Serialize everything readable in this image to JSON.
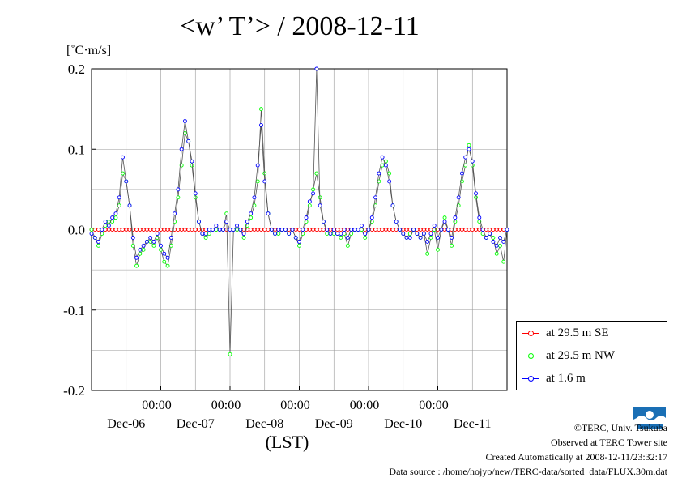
{
  "title": "<w’ T’> / 2008-12-11",
  "unit_label": "[˚C·m/s]",
  "chart_data": {
    "type": "line",
    "xlabel": "(LST)",
    "ylabel": "[˚C·m/s]",
    "ylim": [
      -0.2,
      0.2
    ],
    "yticks": [
      -0.2,
      -0.1,
      0.0,
      0.1,
      0.2
    ],
    "ytick_labels": [
      "-0.2",
      "-0.1",
      "0.0",
      "0.1",
      "0.2"
    ],
    "xlim": [
      0,
      6
    ],
    "xtick_time_labels": [
      "00:00",
      "00:00",
      "00:00",
      "00:00",
      "00:00"
    ],
    "xtick_date_labels": [
      "Dec-06",
      "Dec-07",
      "Dec-08",
      "Dec-09",
      "Dec-10",
      "Dec-11"
    ],
    "grid": true,
    "legend_position": "bottom-right",
    "series": [
      {
        "name": "at 29.5 m SE",
        "color": "#ff0000",
        "x": [
          0.0,
          6.0
        ],
        "y": [
          0.0,
          0.0
        ]
      },
      {
        "name": "at 29.5 m NW",
        "color": "#00ff00",
        "x": [
          0.0,
          0.05,
          0.1,
          0.15,
          0.2,
          0.25,
          0.3,
          0.35,
          0.4,
          0.45,
          0.5,
          0.55,
          0.6,
          0.65,
          0.7,
          0.75,
          0.8,
          0.85,
          0.9,
          0.95,
          1.0,
          1.05,
          1.1,
          1.15,
          1.2,
          1.25,
          1.3,
          1.35,
          1.4,
          1.45,
          1.5,
          1.55,
          1.6,
          1.65,
          1.7,
          1.75,
          1.8,
          1.85,
          1.9,
          1.95,
          2.0,
          2.05,
          2.1,
          2.15,
          2.2,
          2.25,
          2.3,
          2.35,
          2.4,
          2.45,
          2.5,
          2.55,
          2.6,
          2.65,
          2.7,
          2.75,
          2.8,
          2.85,
          2.9,
          2.95,
          3.0,
          3.05,
          3.1,
          3.15,
          3.2,
          3.25,
          3.3,
          3.35,
          3.4,
          3.45,
          3.5,
          3.55,
          3.6,
          3.65,
          3.7,
          3.75,
          3.8,
          3.85,
          3.9,
          3.95,
          4.0,
          4.05,
          4.1,
          4.15,
          4.2,
          4.25,
          4.3,
          4.35,
          4.4,
          4.45,
          4.5,
          4.55,
          4.6,
          4.65,
          4.7,
          4.75,
          4.8,
          4.85,
          4.9,
          4.95,
          5.0,
          5.05,
          5.1,
          5.15,
          5.2,
          5.25,
          5.3,
          5.35,
          5.4,
          5.45,
          5.5,
          5.55,
          5.6,
          5.65,
          5.7,
          5.75,
          5.8,
          5.85,
          5.9,
          5.95,
          6.0
        ],
        "y": [
          0.0,
          -0.01,
          -0.02,
          -0.005,
          0.005,
          0.01,
          0.01,
          0.015,
          0.03,
          0.07,
          0.06,
          0.03,
          -0.02,
          -0.045,
          -0.03,
          -0.025,
          -0.015,
          -0.015,
          -0.02,
          -0.01,
          -0.025,
          -0.04,
          -0.045,
          -0.02,
          0.01,
          0.04,
          0.08,
          0.12,
          0.11,
          0.08,
          0.04,
          0.01,
          -0.005,
          -0.01,
          -0.005,
          0.0,
          0.0,
          0.0,
          0.0,
          0.02,
          -0.155,
          0.0,
          0.0,
          0.0,
          -0.01,
          0.005,
          0.015,
          0.03,
          0.06,
          0.15,
          0.07,
          0.02,
          0.0,
          -0.005,
          -0.005,
          0.0,
          0.0,
          -0.005,
          0.0,
          -0.01,
          -0.02,
          -0.005,
          0.01,
          0.03,
          0.05,
          0.07,
          0.04,
          0.01,
          -0.005,
          -0.005,
          -0.005,
          -0.005,
          -0.01,
          -0.005,
          -0.02,
          -0.005,
          0.0,
          0.0,
          0.0,
          -0.01,
          0.0,
          0.01,
          0.03,
          0.06,
          0.08,
          0.085,
          0.07,
          0.03,
          0.01,
          0.0,
          -0.005,
          -0.01,
          -0.005,
          0.0,
          -0.005,
          -0.01,
          -0.005,
          -0.03,
          -0.01,
          0.0,
          -0.025,
          0.0,
          0.015,
          0.0,
          -0.02,
          0.01,
          0.03,
          0.06,
          0.08,
          0.105,
          0.08,
          0.04,
          0.01,
          -0.005,
          -0.01,
          -0.005,
          -0.01,
          -0.03,
          -0.02,
          -0.04,
          0.0
        ]
      },
      {
        "name": "at 1.6 m",
        "color": "#0000ff",
        "x": [
          0.0,
          0.05,
          0.1,
          0.15,
          0.2,
          0.25,
          0.3,
          0.35,
          0.4,
          0.45,
          0.5,
          0.55,
          0.6,
          0.65,
          0.7,
          0.75,
          0.8,
          0.85,
          0.9,
          0.95,
          1.0,
          1.05,
          1.1,
          1.15,
          1.2,
          1.25,
          1.3,
          1.35,
          1.4,
          1.45,
          1.5,
          1.55,
          1.6,
          1.65,
          1.7,
          1.75,
          1.8,
          1.85,
          1.9,
          1.95,
          2.0,
          2.05,
          2.1,
          2.15,
          2.2,
          2.25,
          2.3,
          2.35,
          2.4,
          2.45,
          2.5,
          2.55,
          2.6,
          2.65,
          2.7,
          2.75,
          2.8,
          2.85,
          2.9,
          2.95,
          3.0,
          3.05,
          3.1,
          3.15,
          3.2,
          3.25,
          3.3,
          3.35,
          3.4,
          3.45,
          3.5,
          3.55,
          3.6,
          3.65,
          3.7,
          3.75,
          3.8,
          3.85,
          3.9,
          3.95,
          4.0,
          4.05,
          4.1,
          4.15,
          4.2,
          4.25,
          4.3,
          4.35,
          4.4,
          4.45,
          4.5,
          4.55,
          4.6,
          4.65,
          4.7,
          4.75,
          4.8,
          4.85,
          4.9,
          4.95,
          5.0,
          5.05,
          5.1,
          5.15,
          5.2,
          5.25,
          5.3,
          5.35,
          5.4,
          5.45,
          5.5,
          5.55,
          5.6,
          5.65,
          5.7,
          5.75,
          5.8,
          5.85,
          5.9,
          5.95,
          6.0
        ],
        "y": [
          -0.005,
          -0.01,
          -0.015,
          0.0,
          0.01,
          0.005,
          0.015,
          0.02,
          0.04,
          0.09,
          0.06,
          0.03,
          -0.01,
          -0.035,
          -0.025,
          -0.02,
          -0.015,
          -0.01,
          -0.015,
          -0.005,
          -0.02,
          -0.03,
          -0.035,
          -0.01,
          0.02,
          0.05,
          0.1,
          0.135,
          0.11,
          0.085,
          0.045,
          0.01,
          -0.005,
          -0.005,
          0.0,
          0.0,
          0.005,
          0.0,
          0.0,
          0.01,
          0.0,
          0.0,
          0.005,
          0.0,
          -0.005,
          0.01,
          0.02,
          0.04,
          0.08,
          0.13,
          0.06,
          0.02,
          0.0,
          -0.005,
          0.0,
          0.0,
          0.0,
          -0.005,
          0.0,
          -0.01,
          -0.015,
          0.0,
          0.015,
          0.035,
          0.045,
          0.2,
          0.03,
          0.01,
          0.0,
          -0.005,
          0.0,
          -0.005,
          -0.005,
          0.0,
          -0.01,
          0.0,
          0.0,
          0.0,
          0.005,
          -0.005,
          0.0,
          0.015,
          0.04,
          0.07,
          0.09,
          0.08,
          0.06,
          0.03,
          0.01,
          0.0,
          -0.005,
          -0.01,
          -0.01,
          0.0,
          -0.005,
          -0.01,
          -0.005,
          -0.015,
          -0.005,
          0.005,
          -0.01,
          0.0,
          0.01,
          0.0,
          -0.01,
          0.015,
          0.04,
          0.07,
          0.09,
          0.1,
          0.085,
          0.045,
          0.015,
          0.0,
          -0.01,
          -0.005,
          -0.015,
          -0.02,
          -0.01,
          -0.015,
          0.0
        ]
      }
    ]
  },
  "footer": {
    "copyright": "©TERC, Univ. Tsukuba",
    "observed": "Observed at TERC Tower site",
    "created": "Created Automatically at 2008-12-11/23:32:17",
    "source": "Data source : /home/hojyo/new/TERC-data/sorted_data/FLUX.30m.dat"
  },
  "logo_text": "TERC"
}
